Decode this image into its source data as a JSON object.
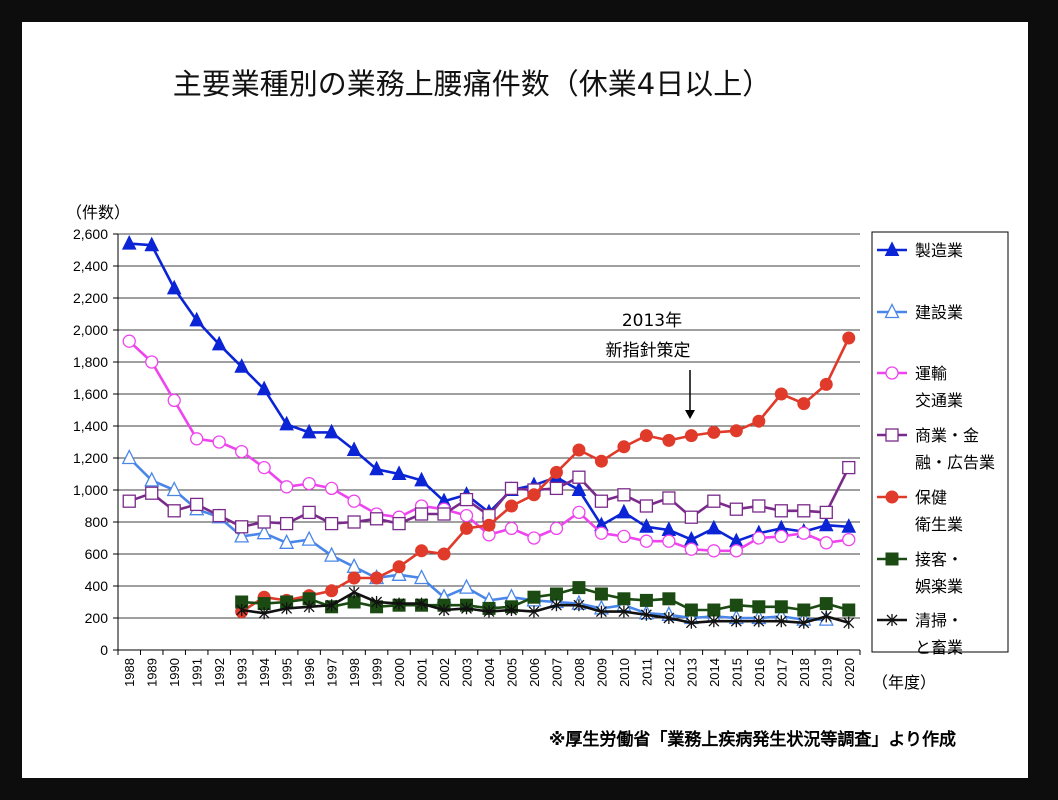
{
  "chart_data": {
    "type": "line",
    "title": "主要業種別の業務上腰痛件数（休業4日以上）",
    "ylabel": "（件数）",
    "xlabel": "（年度）",
    "ylim": [
      0,
      2600
    ],
    "yticks": [
      "0",
      "200",
      "400",
      "600",
      "800",
      "1,000",
      "1,200",
      "1,400",
      "1,600",
      "1,800",
      "2,000",
      "2,200",
      "2,400",
      "2,600"
    ],
    "categories": [
      "1988",
      "1989",
      "1990",
      "1991",
      "1992",
      "1993",
      "1994",
      "1995",
      "1996",
      "1997",
      "1998",
      "1999",
      "2000",
      "2001",
      "2002",
      "2003",
      "2004",
      "2005",
      "2006",
      "2007",
      "2008",
      "2009",
      "2010",
      "2011",
      "2012",
      "2013",
      "2014",
      "2015",
      "2016",
      "2017",
      "2018",
      "2019",
      "2020"
    ],
    "grid": true,
    "legend_position": "right",
    "series": [
      {
        "name": "製造業",
        "line1": "製造業",
        "line2": "",
        "color": "#0a24d6",
        "marker": "triangle-filled",
        "values": [
          2540,
          2530,
          2260,
          2060,
          1910,
          1770,
          1630,
          1410,
          1360,
          1360,
          1250,
          1130,
          1100,
          1060,
          930,
          970,
          860,
          1000,
          1030,
          1080,
          1000,
          780,
          860,
          770,
          750,
          690,
          760,
          680,
          730,
          760,
          740,
          780,
          770
        ]
      },
      {
        "name": "建設業",
        "line1": "建設業",
        "line2": "",
        "color": "#4a86e8",
        "marker": "triangle-open",
        "values": [
          1200,
          1060,
          1000,
          880,
          830,
          710,
          730,
          670,
          690,
          590,
          520,
          450,
          470,
          450,
          330,
          390,
          310,
          330,
          310,
          300,
          290,
          260,
          280,
          230,
          220,
          200,
          210,
          200,
          200,
          210,
          190,
          190,
          null
        ]
      },
      {
        "name": "運輸交通業",
        "line1": "運輸",
        "line2": "交通業",
        "color": "#ee44ee",
        "marker": "circle-open",
        "values": [
          1930,
          1800,
          1560,
          1320,
          1300,
          1240,
          1140,
          1020,
          1040,
          1010,
          930,
          850,
          830,
          900,
          880,
          840,
          720,
          760,
          700,
          760,
          860,
          730,
          710,
          680,
          680,
          630,
          620,
          620,
          700,
          710,
          730,
          670,
          690
        ]
      },
      {
        "name": "商業・金融・広告業",
        "line1": "商業・金",
        "line2": "融・広告業",
        "color": "#7a2a8a",
        "marker": "square-open",
        "values": [
          930,
          980,
          870,
          910,
          840,
          770,
          800,
          790,
          860,
          790,
          800,
          820,
          790,
          850,
          850,
          940,
          840,
          1010,
          1000,
          1010,
          1080,
          930,
          970,
          900,
          950,
          830,
          930,
          880,
          900,
          870,
          870,
          860,
          1140
        ]
      },
      {
        "name": "保健衛生業",
        "line1": "保健",
        "line2": "衛生業",
        "color": "#e03a2a",
        "marker": "circle-filled",
        "values": [
          null,
          null,
          null,
          null,
          null,
          240,
          330,
          310,
          340,
          370,
          450,
          450,
          520,
          620,
          600,
          760,
          780,
          900,
          970,
          1110,
          1250,
          1180,
          1270,
          1340,
          1310,
          1340,
          1360,
          1370,
          1430,
          1600,
          1540,
          1660,
          1950
        ]
      },
      {
        "name": "接客・娯楽業",
        "line1": "接客・",
        "line2": "娯楽業",
        "color": "#1b4a12",
        "marker": "square-filled",
        "values": [
          null,
          null,
          null,
          null,
          null,
          300,
          290,
          300,
          320,
          270,
          300,
          270,
          280,
          280,
          280,
          280,
          260,
          270,
          330,
          350,
          390,
          350,
          320,
          310,
          320,
          250,
          250,
          280,
          270,
          270,
          250,
          290,
          250
        ]
      },
      {
        "name": "清掃・と畜業",
        "line1": "清掃・",
        "line2": "と畜業",
        "color": "#111111",
        "marker": "asterisk",
        "values": [
          null,
          null,
          null,
          null,
          null,
          250,
          230,
          260,
          270,
          280,
          360,
          300,
          290,
          290,
          250,
          260,
          240,
          250,
          240,
          280,
          280,
          240,
          240,
          220,
          200,
          170,
          180,
          180,
          180,
          180,
          170,
          210,
          170
        ]
      }
    ],
    "annotation": {
      "line1": "2013年",
      "line2": "新指針策定",
      "year": "2013"
    },
    "source": "※厚生労働省「業務上疾病発生状況等調査」より作成"
  }
}
